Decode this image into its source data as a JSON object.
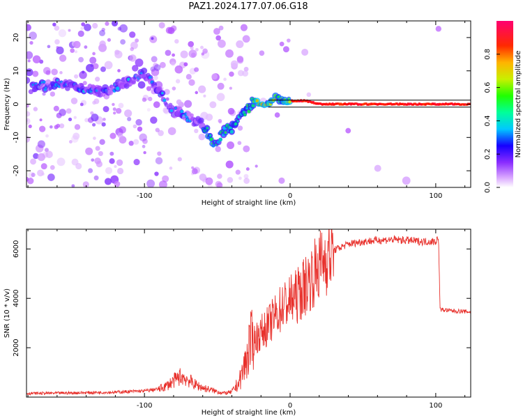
{
  "title": "PAZ1.2024.177.07.06.G18",
  "chart_data": [
    {
      "type": "heatmap",
      "xlabel": "Height of straight line (km)",
      "ylabel": "Frequency (Hz)",
      "xlim": [
        -181,
        124
      ],
      "ylim": [
        -25,
        25
      ],
      "x_ticks": [
        -100,
        0,
        100
      ],
      "x_tick_labels": [
        "-100",
        "0",
        "100"
      ],
      "y_ticks": [
        -20,
        -10,
        0,
        10,
        20
      ],
      "y_tick_labels": [
        "-20",
        "-10",
        "0",
        "10",
        "20"
      ],
      "grid": false,
      "ridge": {
        "x": [
          -175,
          -160,
          -150,
          -140,
          -130,
          -120,
          -110,
          -100,
          -90,
          -80,
          -70,
          -60,
          -52,
          -45,
          -40,
          -35,
          -30,
          -25,
          -20,
          -15,
          -10,
          -5,
          0,
          10,
          20,
          40,
          60,
          80,
          100,
          124
        ],
        "y": [
          5,
          6,
          6,
          5,
          4,
          5,
          7,
          9,
          4,
          -2,
          -4,
          -6,
          -12,
          -8,
          -7,
          -4,
          -2,
          1,
          0,
          0,
          2,
          1,
          1,
          1,
          0,
          0,
          0,
          0,
          0,
          0
        ]
      },
      "colorbar": {
        "label": "Normalized spectral amplitude",
        "range": [
          0,
          1
        ],
        "ticks": [
          0.0,
          0.2,
          0.4,
          0.6,
          0.8
        ],
        "tick_labels": [
          "0.0",
          "0.2",
          "0.4",
          "0.6",
          "0.8"
        ]
      }
    },
    {
      "type": "line",
      "xlabel": "Height of straight line (km)",
      "ylabel": "SNR (10 * v/v)",
      "xlim": [
        -181,
        124
      ],
      "ylim": [
        0,
        6800
      ],
      "x_ticks": [
        -100,
        0,
        100
      ],
      "x_tick_labels": [
        "-100",
        "0",
        "100"
      ],
      "y_ticks": [
        2000,
        4000,
        6000
      ],
      "y_tick_labels": [
        "2000",
        "4000",
        "6000"
      ],
      "grid": false,
      "color": "#e8312c",
      "x": [
        -181,
        -160,
        -140,
        -120,
        -100,
        -90,
        -85,
        -80,
        -75,
        -70,
        -65,
        -60,
        -55,
        -50,
        -45,
        -40,
        -35,
        -30,
        -28,
        -25,
        -20,
        -15,
        -10,
        -5,
        0,
        5,
        10,
        15,
        20,
        25,
        30,
        40,
        50,
        60,
        70,
        80,
        90,
        100,
        101,
        102,
        103,
        110,
        124
      ],
      "y": [
        150,
        160,
        180,
        200,
        250,
        330,
        450,
        650,
        850,
        700,
        500,
        380,
        300,
        220,
        160,
        200,
        600,
        1500,
        2100,
        2300,
        2600,
        2900,
        3300,
        3700,
        3900,
        4100,
        4500,
        4900,
        5300,
        5700,
        5950,
        6200,
        6300,
        6350,
        6380,
        6350,
        6300,
        6300,
        6450,
        6200,
        3550,
        3500,
        3450
      ]
    }
  ]
}
